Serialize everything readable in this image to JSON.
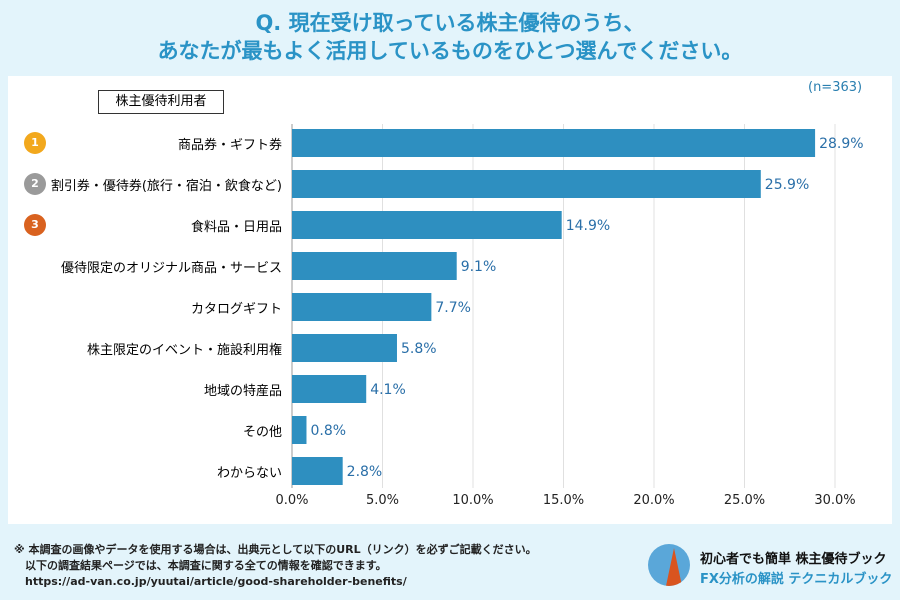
{
  "title_line1": "Q. 現在受け取っている株主優待のうち、",
  "title_line2": "あなたが最もよく活用しているものをひとつ選んでください。",
  "legend": "株主優待利用者",
  "sample": "(n=363)",
  "medals": [
    {
      "rank": "1",
      "color": "#f2a81d"
    },
    {
      "rank": "2",
      "color": "#9a9a9a"
    },
    {
      "rank": "3",
      "color": "#d9621f"
    }
  ],
  "chart_data": {
    "type": "bar",
    "orientation": "horizontal",
    "categories": [
      "商品券・ギフト券",
      "割引券・優待券(旅行・宿泊・飲食など)",
      "食料品・日用品",
      "優待限定のオリジナル商品・サービス",
      "カタログギフト",
      "株主限定のイベント・施設利用権",
      "地域の特産品",
      "その他",
      "わからない"
    ],
    "values": [
      28.9,
      25.9,
      14.9,
      9.1,
      7.7,
      5.8,
      4.1,
      0.8,
      2.8
    ],
    "labels": [
      "28.9%",
      "25.9%",
      "14.9%",
      "9.1%",
      "7.7%",
      "5.8%",
      "4.1%",
      "0.8%",
      "2.8%"
    ],
    "xlim": [
      0,
      30
    ],
    "ticks": [
      "0.0%",
      "5.0%",
      "10.0%",
      "15.0%",
      "20.0%",
      "25.0%",
      "30.0%"
    ],
    "grid": true,
    "bar_color": "#2e8fc0",
    "label_color": "#2a6fa8"
  },
  "footnote": [
    "※ 本調査の画像やデータを使用する場合は、出典元として以下のURL（リンク）を必ずご記載ください。",
    "　以下の調査結果ページでは、本調査に関する全ての情報を確認できます。",
    "　https://ad-van.co.jp/yuutai/article/good-shareholder-benefits/"
  ],
  "brand": {
    "line1": "初心者でも簡単 株主優待ブック",
    "line2": "FX分析の解説 テクニカルブック"
  }
}
